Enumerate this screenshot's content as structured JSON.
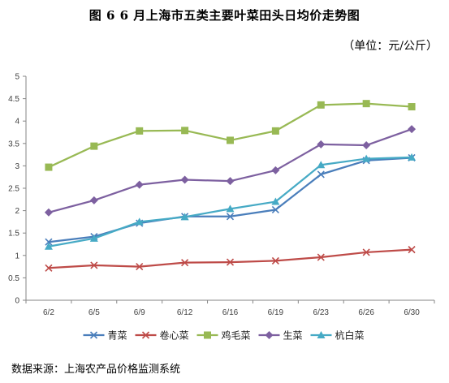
{
  "header": {
    "title": "图 6   6 月上海市五类主要叶菜田头日均价走势图",
    "unit": "（单位：元/公斤）"
  },
  "footer": {
    "source": "数据来源：上海农产品价格监测系统"
  },
  "chart_data": {
    "type": "line",
    "categories": [
      "6/2",
      "6/5",
      "6/9",
      "6/12",
      "6/16",
      "6/19",
      "6/23",
      "6/26",
      "6/30"
    ],
    "ylim": [
      0,
      5
    ],
    "yticks": [
      "0",
      "0.5",
      "1",
      "1.5",
      "2",
      "2.5",
      "3",
      "3.5",
      "4",
      "4.5",
      "5"
    ],
    "legend_position": "bottom",
    "grid": false,
    "series": [
      {
        "name": "青菜",
        "color": "#4A7EBB",
        "marker": "x",
        "values": [
          1.3,
          1.42,
          1.72,
          1.87,
          1.87,
          2.02,
          2.81,
          3.12,
          3.18
        ]
      },
      {
        "name": "卷心菜",
        "color": "#BE4B48",
        "marker": "x",
        "values": [
          0.72,
          0.78,
          0.75,
          0.84,
          0.85,
          0.88,
          0.96,
          1.07,
          1.13
        ]
      },
      {
        "name": "鸡毛菜",
        "color": "#98B954",
        "marker": "square",
        "values": [
          2.97,
          3.44,
          3.78,
          3.79,
          3.57,
          3.78,
          4.36,
          4.39,
          4.32
        ]
      },
      {
        "name": "生菜",
        "color": "#7D60A0",
        "marker": "diamond",
        "values": [
          1.96,
          2.23,
          2.58,
          2.69,
          2.66,
          2.9,
          3.48,
          3.46,
          3.82
        ]
      },
      {
        "name": "杭白菜",
        "color": "#46AAC5",
        "marker": "triangle",
        "values": [
          1.2,
          1.38,
          1.75,
          1.86,
          2.04,
          2.2,
          3.02,
          3.16,
          3.19
        ]
      }
    ]
  }
}
